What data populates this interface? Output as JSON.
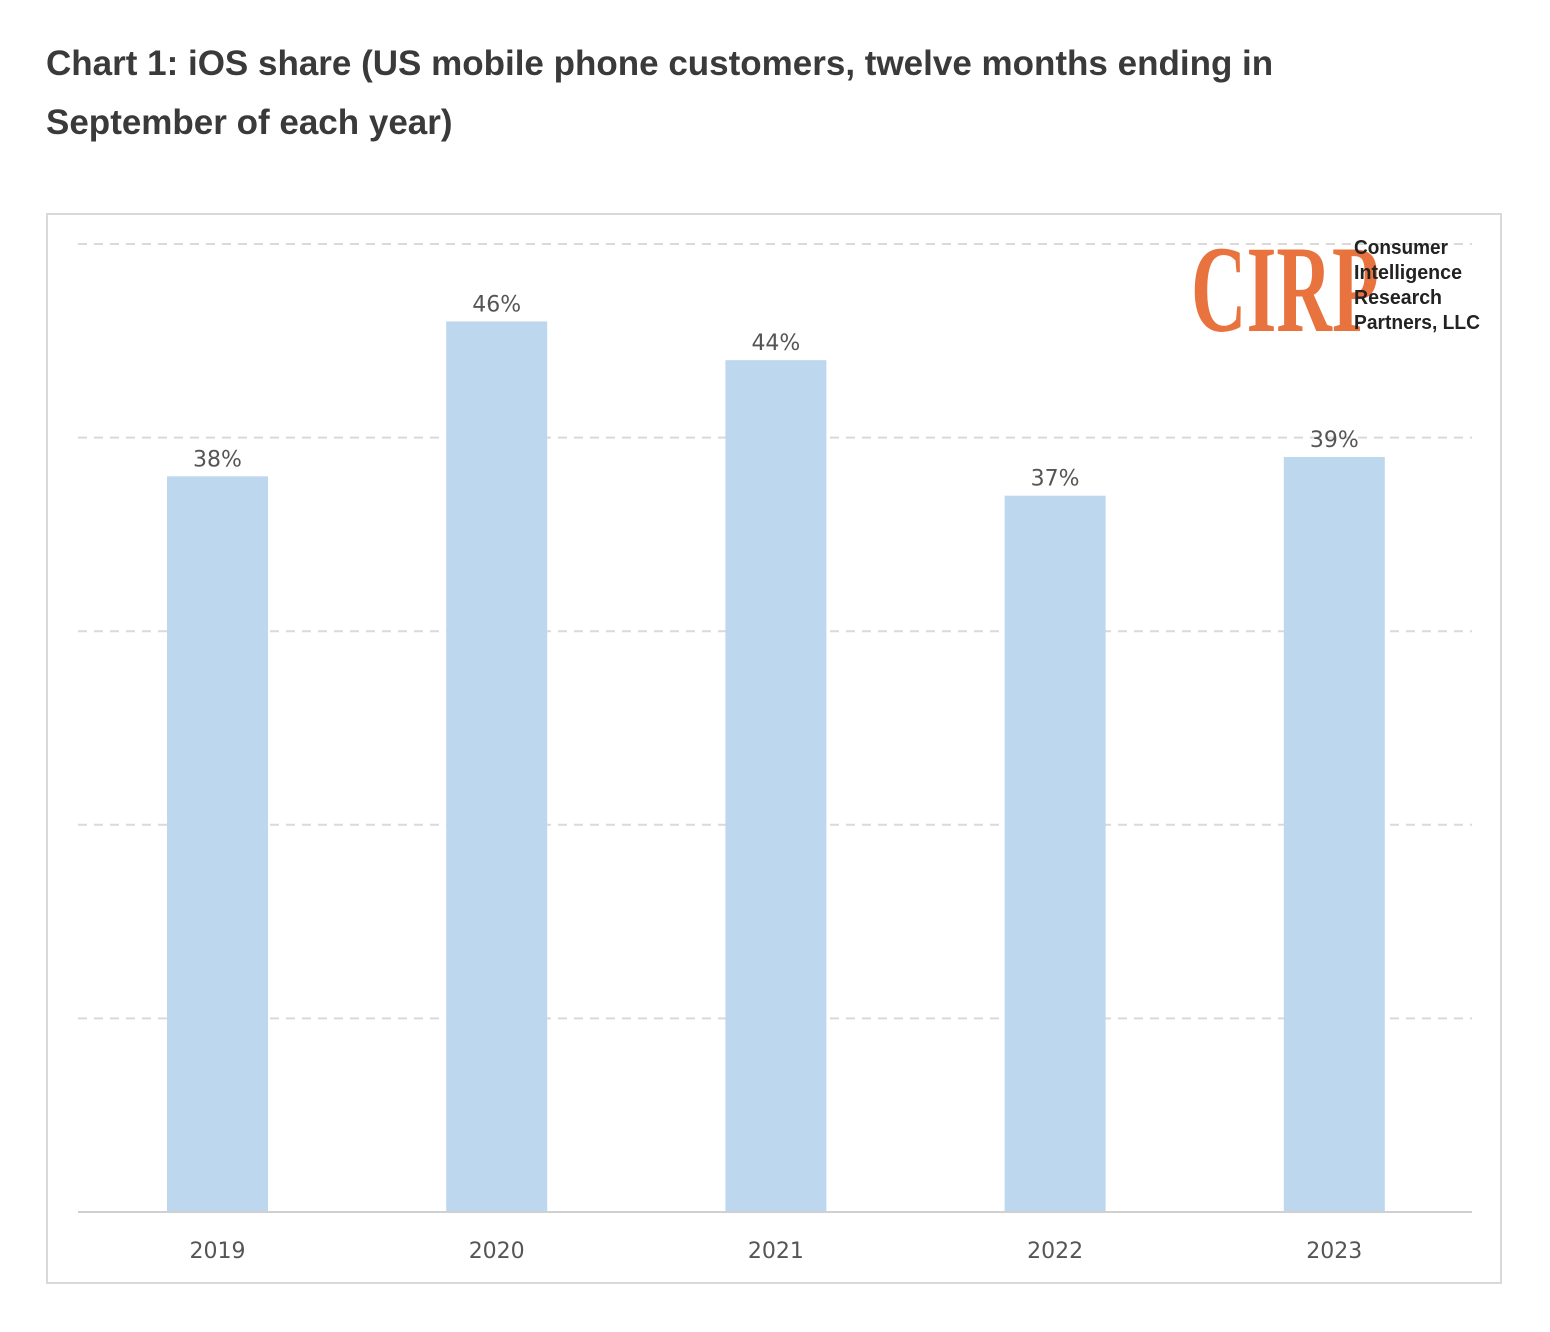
{
  "chart_data": {
    "type": "bar",
    "title": "Chart 1: iOS share (US mobile phone customers, twelve months ending in September of each year)",
    "categories": [
      "2019",
      "2020",
      "2021",
      "2022",
      "2023"
    ],
    "values": [
      38,
      46,
      44,
      37,
      39
    ],
    "data_labels": [
      "38%",
      "46%",
      "44%",
      "37%",
      "39%"
    ],
    "xlabel": "",
    "ylabel": "",
    "ylim": [
      0,
      50
    ],
    "y_gridlines": [
      10,
      20,
      30,
      40,
      50
    ],
    "grid": true,
    "y_tick_labels_shown": false,
    "bar_color": "#BDD7EE",
    "legend": "none"
  },
  "logo": {
    "mark": "CIRP",
    "lines": [
      "Consumer",
      "Intelligence",
      "Research",
      "Partners, LLC"
    ],
    "mark_color": "#E8733F"
  }
}
